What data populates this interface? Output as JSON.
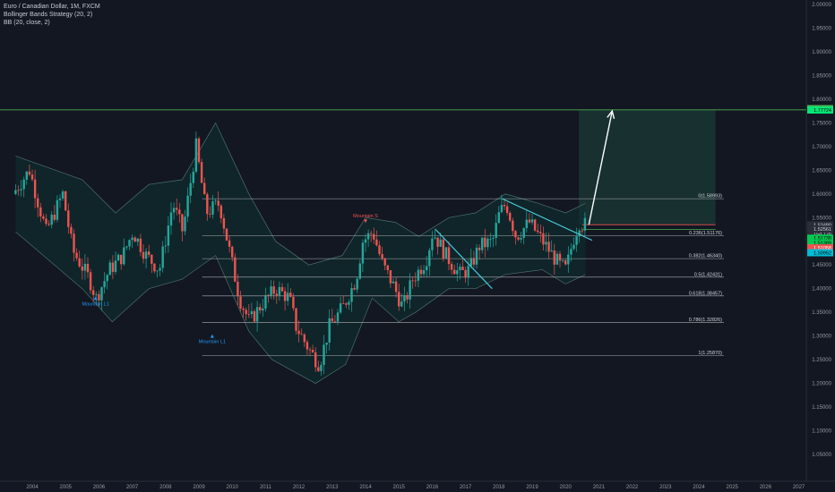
{
  "legend": {
    "title": "Euro / Canadian Dollar, 1M, FXCM",
    "line2": "Bollinger Bands Strategy (20, 2)",
    "line3": "BB (20, close, 2)"
  },
  "colors": {
    "background": "#131722",
    "up": "#26a69a",
    "down": "#ef5350",
    "band_fill": "#0e2e30",
    "band_line": "#4c6f6c",
    "fib_line": "#c9c9c9",
    "target_line": "#4caf50",
    "trendline": "#4dd0e1",
    "arrow": "#ffffff",
    "target_zone": "#1b3a35"
  },
  "chart_data": {
    "type": "candlestick",
    "symbol": "EURCAD",
    "timeframe": "1M",
    "y_axis": {
      "min": 1.05,
      "max": 2.0,
      "scale": "linear",
      "ticks": [
        "2.00000",
        "1.95000",
        "1.90000",
        "1.85000",
        "1.80000",
        "1.75000",
        "1.70000",
        "1.65000",
        "1.60000",
        "1.55000",
        "1.50000",
        "1.45000",
        "1.40000",
        "1.35000",
        "1.30000",
        "1.25000",
        "1.20000",
        "1.15000",
        "1.10000",
        "1.05000"
      ]
    },
    "x_axis": {
      "ticks": [
        "2004",
        "2005",
        "2006",
        "2007",
        "2008",
        "2009",
        "2010",
        "2011",
        "2012",
        "2013",
        "2014",
        "2015",
        "2016",
        "2017",
        "2018",
        "2019",
        "2020",
        "2021",
        "2022",
        "2023",
        "2024",
        "2025",
        "2026",
        "2027"
      ]
    },
    "price_path": [
      [
        2003.5,
        1.6
      ],
      [
        2004.0,
        1.65
      ],
      [
        2004.5,
        1.52
      ],
      [
        2005.0,
        1.6
      ],
      [
        2005.3,
        1.48
      ],
      [
        2005.8,
        1.42
      ],
      [
        2006.0,
        1.38
      ],
      [
        2006.4,
        1.44
      ],
      [
        2006.8,
        1.47
      ],
      [
        2007.1,
        1.52
      ],
      [
        2007.5,
        1.47
      ],
      [
        2007.9,
        1.44
      ],
      [
        2008.3,
        1.58
      ],
      [
        2008.6,
        1.52
      ],
      [
        2009.0,
        1.7
      ],
      [
        2009.3,
        1.56
      ],
      [
        2009.7,
        1.58
      ],
      [
        2010.0,
        1.48
      ],
      [
        2010.3,
        1.38
      ],
      [
        2010.6,
        1.33
      ],
      [
        2011.0,
        1.37
      ],
      [
        2011.4,
        1.4
      ],
      [
        2011.8,
        1.38
      ],
      [
        2012.0,
        1.32
      ],
      [
        2012.4,
        1.27
      ],
      [
        2012.7,
        1.24
      ],
      [
        2013.0,
        1.32
      ],
      [
        2013.4,
        1.36
      ],
      [
        2013.8,
        1.42
      ],
      [
        2014.0,
        1.5
      ],
      [
        2014.3,
        1.52
      ],
      [
        2014.6,
        1.45
      ],
      [
        2014.9,
        1.41
      ],
      [
        2015.2,
        1.36
      ],
      [
        2015.5,
        1.42
      ],
      [
        2015.9,
        1.46
      ],
      [
        2016.1,
        1.52
      ],
      [
        2016.5,
        1.47
      ],
      [
        2016.9,
        1.43
      ],
      [
        2017.2,
        1.44
      ],
      [
        2017.5,
        1.49
      ],
      [
        2017.9,
        1.5
      ],
      [
        2018.1,
        1.56
      ],
      [
        2018.3,
        1.58
      ],
      [
        2018.6,
        1.51
      ],
      [
        2019.0,
        1.54
      ],
      [
        2019.3,
        1.51
      ],
      [
        2019.7,
        1.47
      ],
      [
        2019.9,
        1.45
      ],
      [
        2020.1,
        1.44
      ],
      [
        2020.3,
        1.5
      ],
      [
        2020.5,
        1.54
      ],
      [
        2020.6,
        1.535
      ]
    ],
    "bollinger": {
      "upper": [
        [
          2003.5,
          1.68
        ],
        [
          2005.5,
          1.63
        ],
        [
          2006.5,
          1.56
        ],
        [
          2007.5,
          1.62
        ],
        [
          2008.5,
          1.63
        ],
        [
          2009.5,
          1.75
        ],
        [
          2010.5,
          1.6
        ],
        [
          2011.3,
          1.5
        ],
        [
          2012.3,
          1.45
        ],
        [
          2013.3,
          1.47
        ],
        [
          2014.0,
          1.55
        ],
        [
          2014.9,
          1.54
        ],
        [
          2015.6,
          1.51
        ],
        [
          2016.5,
          1.55
        ],
        [
          2017.3,
          1.56
        ],
        [
          2018.2,
          1.6
        ],
        [
          2019.2,
          1.58
        ],
        [
          2020.0,
          1.56
        ],
        [
          2020.6,
          1.58
        ]
      ],
      "lower": [
        [
          2003.5,
          1.52
        ],
        [
          2005.5,
          1.4
        ],
        [
          2006.4,
          1.33
        ],
        [
          2007.5,
          1.4
        ],
        [
          2008.5,
          1.42
        ],
        [
          2009.5,
          1.47
        ],
        [
          2010.5,
          1.31
        ],
        [
          2011.2,
          1.25
        ],
        [
          2012.5,
          1.2
        ],
        [
          2013.4,
          1.24
        ],
        [
          2014.2,
          1.38
        ],
        [
          2015.0,
          1.33
        ],
        [
          2015.5,
          1.35
        ],
        [
          2016.5,
          1.4
        ],
        [
          2017.3,
          1.4
        ],
        [
          2018.2,
          1.43
        ],
        [
          2019.3,
          1.44
        ],
        [
          2020.0,
          1.41
        ],
        [
          2020.6,
          1.43
        ]
      ]
    },
    "fib_levels": [
      {
        "label": "0(1.58993)",
        "price": 1.58993
      },
      {
        "label": "0.236(1.51176)",
        "price": 1.51176
      },
      {
        "label": "0.382(1.46340)",
        "price": 1.4634
      },
      {
        "label": "0.5(1.42431)",
        "price": 1.42431
      },
      {
        "label": "0.618(1.38457)",
        "price": 1.38457
      },
      {
        "label": "0.786(1.32826)",
        "price": 1.32826
      },
      {
        "label": "1(1.25870)",
        "price": 1.2587
      }
    ],
    "target_line": 1.7775,
    "target_zone": {
      "x0": 2020.4,
      "x1": 2024.5,
      "y0": 1.535,
      "y1": 1.7775
    },
    "projection_arrow": {
      "from": [
        2020.7,
        1.535
      ],
      "to": [
        2021.4,
        1.775
      ]
    },
    "trendlines": [
      {
        "from": [
          2016.1,
          1.525
        ],
        "to": [
          2017.8,
          1.4
        ]
      },
      {
        "from": [
          2018.1,
          1.59
        ],
        "to": [
          2020.8,
          1.502
        ]
      }
    ],
    "signals": [
      {
        "label": "Mountain L1",
        "x": 2005.9,
        "price": 1.38
      },
      {
        "label": "Mountain L1",
        "x": 2009.4,
        "price": 1.3
      },
      {
        "label": "Mountain S",
        "x": 2014.0,
        "price": 1.535
      }
    ],
    "price_tags": [
      {
        "text": "1.78013",
        "price": 1.7801,
        "bg": "#4caf50",
        "fg": "#ffffff"
      },
      {
        "text": "1.77724",
        "price": 1.7772,
        "bg": "#00e676",
        "fg": "#000000"
      },
      {
        "text": "1.53480",
        "price": 1.5348,
        "bg": "#2a2e39",
        "fg": "#d1d4dc"
      },
      {
        "text": "15d 17h",
        "price": 1.5155,
        "bg": "#2a2e39",
        "fg": "#d1d4dc"
      },
      {
        "text": "1.52561",
        "price": 1.5256,
        "bg": "#2a2e39",
        "fg": "#d1d4dc"
      },
      {
        "text": "1.51738",
        "price": 1.5066,
        "bg": "#00c853",
        "fg": "#000000"
      },
      {
        "text": "1.51389",
        "price": 1.4964,
        "bg": "#00c853",
        "fg": "#000000"
      },
      {
        "text": "1.51058",
        "price": 1.4861,
        "bg": "#ef5350",
        "fg": "#ffffff"
      },
      {
        "text": "1.50952",
        "price": 1.4759,
        "bg": "#00bcd4",
        "fg": "#000000"
      }
    ]
  }
}
